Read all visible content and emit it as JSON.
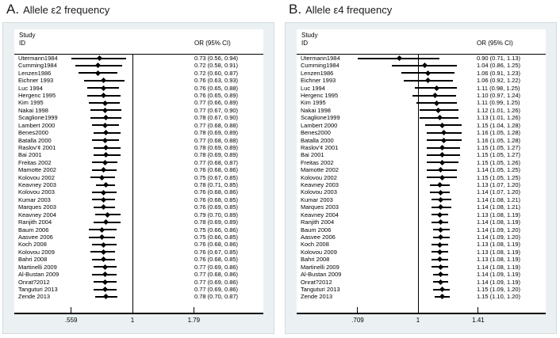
{
  "chart_data": [
    {
      "type": "scatter",
      "variant": "forest-plot-cumulative-meta-analysis",
      "panel_label": "A.",
      "title": "Allele ε2 frequency",
      "header": {
        "study_line1": "Study",
        "study_line2": "ID",
        "or_col": "OR (95% CI)"
      },
      "x_scale": "log",
      "null_line_at": 1,
      "x_tick_values": [
        0.559,
        1,
        1.79
      ],
      "x_tick_labels": [
        ".559",
        "1",
        "1.79"
      ],
      "row_format": [
        "study",
        "or",
        "ci_low",
        "ci_high"
      ],
      "rows": [
        [
          "Utermann1984",
          0.73,
          0.56,
          0.94
        ],
        [
          "Cumming1984",
          0.72,
          0.58,
          0.91
        ],
        [
          "Lenzen1986",
          0.72,
          0.6,
          0.87
        ],
        [
          "Eichner 1993",
          0.76,
          0.63,
          0.93
        ],
        [
          "Luc 1994",
          0.76,
          0.65,
          0.88
        ],
        [
          "Hergenc 1995",
          0.76,
          0.65,
          0.89
        ],
        [
          "Kim 1995",
          0.77,
          0.66,
          0.89
        ],
        [
          "Nakai 1998",
          0.77,
          0.67,
          0.9
        ],
        [
          "Scaglione1999",
          0.78,
          0.67,
          0.9
        ],
        [
          "Lambert 2000",
          0.77,
          0.68,
          0.88
        ],
        [
          "Benes2000",
          0.78,
          0.69,
          0.89
        ],
        [
          "Batalla 2000",
          0.77,
          0.68,
          0.88
        ],
        [
          "Raslov'¢ 2001",
          0.78,
          0.69,
          0.89
        ],
        [
          "Bai 2001",
          0.78,
          0.69,
          0.89
        ],
        [
          "Freitas 2002",
          0.77,
          0.68,
          0.87
        ],
        [
          "Mamotte 2002",
          0.76,
          0.68,
          0.86
        ],
        [
          "Kolovou 2002",
          0.75,
          0.67,
          0.85
        ],
        [
          "Keavney 2003",
          0.78,
          0.71,
          0.85
        ],
        [
          "Kolovou 2003",
          0.76,
          0.68,
          0.86
        ],
        [
          "Kumar 2003",
          0.76,
          0.68,
          0.85
        ],
        [
          "Marques 2003",
          0.76,
          0.69,
          0.85
        ],
        [
          "Keavney 2004",
          0.79,
          0.7,
          0.89
        ],
        [
          "Ranjith 2004",
          0.78,
          0.69,
          0.89
        ],
        [
          "Baum 2006",
          0.75,
          0.66,
          0.86
        ],
        [
          "Aasvee 2006",
          0.75,
          0.66,
          0.85
        ],
        [
          "Koch 2008",
          0.76,
          0.68,
          0.86
        ],
        [
          "Kolovou 2009",
          0.76,
          0.67,
          0.85
        ],
        [
          "Bahri 2008",
          0.76,
          0.68,
          0.85
        ],
        [
          "Martinelli 2009",
          0.77,
          0.69,
          0.86
        ],
        [
          "Al-Bustan 2009",
          0.77,
          0.68,
          0.86
        ],
        [
          "Onrat?2012",
          0.77,
          0.69,
          0.86
        ],
        [
          "Tanguturi 2013",
          0.77,
          0.69,
          0.86
        ],
        [
          "Zende 2013",
          0.78,
          0.7,
          0.87
        ]
      ]
    },
    {
      "type": "scatter",
      "variant": "forest-plot-cumulative-meta-analysis",
      "panel_label": "B.",
      "title": "Allele ε4 frequency",
      "header": {
        "study_line1": "Study",
        "study_line2": "ID",
        "or_col": "OR (95% CI)"
      },
      "x_scale": "log",
      "null_line_at": 1,
      "x_tick_values": [
        0.709,
        1,
        1.41
      ],
      "x_tick_labels": [
        ".709",
        "1",
        "1.41"
      ],
      "row_format": [
        "study",
        "or",
        "ci_low",
        "ci_high"
      ],
      "rows": [
        [
          "Utermann1984",
          0.9,
          0.71,
          1.13
        ],
        [
          "Cumming1984",
          1.04,
          0.86,
          1.25
        ],
        [
          "Lenzen1986",
          1.06,
          0.91,
          1.23
        ],
        [
          "Eichner 1993",
          1.06,
          0.92,
          1.22
        ],
        [
          "Luc 1994",
          1.11,
          0.98,
          1.25
        ],
        [
          "Hergenc 1995",
          1.1,
          0.97,
          1.24
        ],
        [
          "Kim 1995",
          1.11,
          0.99,
          1.25
        ],
        [
          "Nakai 1998",
          1.12,
          1.01,
          1.26
        ],
        [
          "Scaglione1999",
          1.13,
          1.01,
          1.26
        ],
        [
          "Lambert 2000",
          1.15,
          1.04,
          1.28
        ],
        [
          "Benes2000",
          1.16,
          1.05,
          1.28
        ],
        [
          "Batalla 2000",
          1.16,
          1.05,
          1.28
        ],
        [
          "Raslov'¢ 2001",
          1.15,
          1.05,
          1.27
        ],
        [
          "Bai 2001",
          1.15,
          1.05,
          1.27
        ],
        [
          "Freitas 2002",
          1.15,
          1.05,
          1.26
        ],
        [
          "Mamotte 2002",
          1.14,
          1.05,
          1.25
        ],
        [
          "Kolovou 2002",
          1.15,
          1.05,
          1.25
        ],
        [
          "Keavney 2003",
          1.13,
          1.07,
          1.2
        ],
        [
          "Kolovou 2003",
          1.14,
          1.07,
          1.2
        ],
        [
          "Kumar 2003",
          1.14,
          1.08,
          1.21
        ],
        [
          "Marques 2003",
          1.14,
          1.08,
          1.21
        ],
        [
          "Keavney 2004",
          1.13,
          1.08,
          1.19
        ],
        [
          "Ranjith 2004",
          1.14,
          1.08,
          1.19
        ],
        [
          "Baum 2006",
          1.14,
          1.09,
          1.2
        ],
        [
          "Aasvee 2006",
          1.14,
          1.09,
          1.2
        ],
        [
          "Koch 2008",
          1.13,
          1.08,
          1.19
        ],
        [
          "Kolovou 2009",
          1.13,
          1.08,
          1.19
        ],
        [
          "Bahri 2008",
          1.13,
          1.08,
          1.19
        ],
        [
          "Martinelli 2009",
          1.14,
          1.08,
          1.19
        ],
        [
          "Al-Bustan 2009",
          1.14,
          1.09,
          1.19
        ],
        [
          "Onrat?2012",
          1.14,
          1.09,
          1.19
        ],
        [
          "Tanguturi 2013",
          1.15,
          1.09,
          1.2
        ],
        [
          "Zende 2013",
          1.15,
          1.1,
          1.2
        ]
      ]
    }
  ]
}
